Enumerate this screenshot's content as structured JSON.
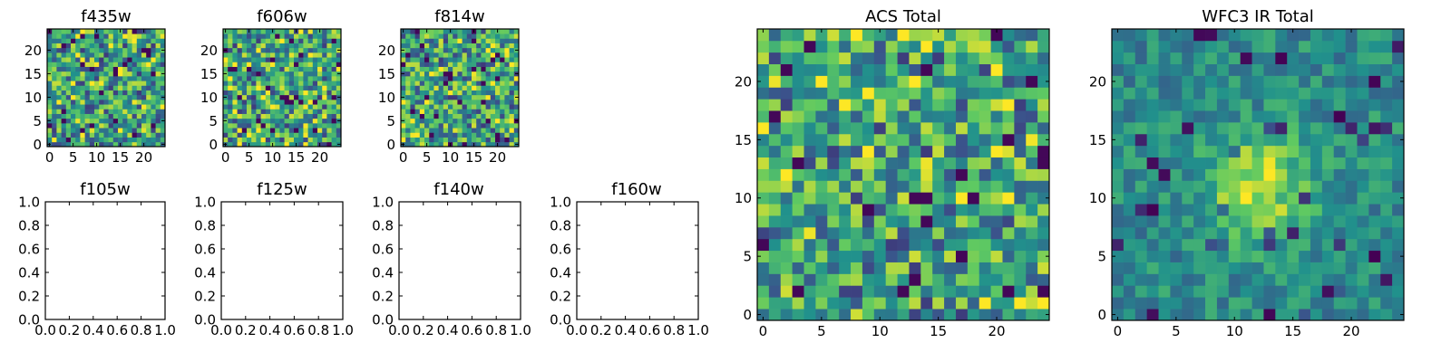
{
  "chart_data": [
    {
      "type": "heatmap",
      "title": "f435w",
      "xlim": [
        -0.5,
        24.5
      ],
      "ylim": [
        -0.5,
        24.5
      ],
      "xticks": [
        0,
        5,
        10,
        15,
        20
      ],
      "yticks": [
        0,
        5,
        10,
        15,
        20
      ],
      "xtick_labels": [
        "0",
        "5",
        "10",
        "15",
        "20"
      ],
      "ytick_labels": [
        "0",
        "5",
        "10",
        "15",
        "20"
      ],
      "grid_size": [
        25,
        25
      ],
      "colormap": "viridis",
      "pattern": "noise",
      "seed": 11
    },
    {
      "type": "heatmap",
      "title": "f606w",
      "xlim": [
        -0.5,
        24.5
      ],
      "ylim": [
        -0.5,
        24.5
      ],
      "xticks": [
        0,
        5,
        10,
        15,
        20
      ],
      "yticks": [
        0,
        5,
        10,
        15,
        20
      ],
      "xtick_labels": [
        "0",
        "5",
        "10",
        "15",
        "20"
      ],
      "ytick_labels": [
        "0",
        "5",
        "10",
        "15",
        "20"
      ],
      "grid_size": [
        25,
        25
      ],
      "colormap": "viridis",
      "pattern": "noise",
      "seed": 23
    },
    {
      "type": "heatmap",
      "title": "f814w",
      "xlim": [
        -0.5,
        24.5
      ],
      "ylim": [
        -0.5,
        24.5
      ],
      "xticks": [
        0,
        5,
        10,
        15,
        20
      ],
      "yticks": [
        0,
        5,
        10,
        15,
        20
      ],
      "xtick_labels": [
        "0",
        "5",
        "10",
        "15",
        "20"
      ],
      "ytick_labels": [
        "0",
        "5",
        "10",
        "15",
        "20"
      ],
      "grid_size": [
        25,
        25
      ],
      "colormap": "viridis",
      "pattern": "noise",
      "seed": 37
    },
    {
      "type": "empty",
      "title": "f105w",
      "xlim": [
        0,
        1
      ],
      "ylim": [
        0,
        1
      ],
      "xtick_labels": [
        "0.0",
        "0.2",
        "0.4",
        "0.6",
        "0.8",
        "1.0"
      ],
      "ytick_labels": [
        "0.0",
        "0.2",
        "0.4",
        "0.6",
        "0.8",
        "1.0"
      ]
    },
    {
      "type": "empty",
      "title": "f125w",
      "xlim": [
        0,
        1
      ],
      "ylim": [
        0,
        1
      ],
      "xtick_labels": [
        "0.0",
        "0.2",
        "0.4",
        "0.6",
        "0.8",
        "1.0"
      ],
      "ytick_labels": [
        "0.0",
        "0.2",
        "0.4",
        "0.6",
        "0.8",
        "1.0"
      ]
    },
    {
      "type": "empty",
      "title": "f140w",
      "xlim": [
        0,
        1
      ],
      "ylim": [
        0,
        1
      ],
      "xtick_labels": [
        "0.0",
        "0.2",
        "0.4",
        "0.6",
        "0.8",
        "1.0"
      ],
      "ytick_labels": [
        "0.0",
        "0.2",
        "0.4",
        "0.6",
        "0.8",
        "1.0"
      ]
    },
    {
      "type": "empty",
      "title": "f160w",
      "xlim": [
        0,
        1
      ],
      "ylim": [
        0,
        1
      ],
      "xtick_labels": [
        "0.0",
        "0.2",
        "0.4",
        "0.6",
        "0.8",
        "1.0"
      ],
      "ytick_labels": [
        "0.0",
        "0.2",
        "0.4",
        "0.6",
        "0.8",
        "1.0"
      ]
    },
    {
      "type": "heatmap",
      "title": "ACS Total",
      "xlim": [
        -0.5,
        24.5
      ],
      "ylim": [
        -0.5,
        24.5
      ],
      "xticks": [
        0,
        5,
        10,
        15,
        20
      ],
      "yticks": [
        0,
        5,
        10,
        15,
        20
      ],
      "xtick_labels": [
        "0",
        "5",
        "10",
        "15",
        "20"
      ],
      "ytick_labels": [
        "0",
        "5",
        "10",
        "15",
        "20"
      ],
      "grid_size": [
        25,
        25
      ],
      "colormap": "viridis",
      "pattern": "noise",
      "seed": 51
    },
    {
      "type": "heatmap",
      "title": "WFC3 IR Total",
      "xlim": [
        -0.5,
        24.5
      ],
      "ylim": [
        -0.5,
        24.5
      ],
      "xticks": [
        0,
        5,
        10,
        15,
        20
      ],
      "yticks": [
        0,
        5,
        10,
        15,
        20
      ],
      "xtick_labels": [
        "0",
        "5",
        "10",
        "15",
        "20"
      ],
      "ytick_labels": [
        "0",
        "5",
        "10",
        "15",
        "20"
      ],
      "grid_size": [
        25,
        25
      ],
      "colormap": "viridis",
      "pattern": "central source",
      "seed": 67,
      "source_center": [
        12,
        11
      ]
    }
  ],
  "colors": {
    "viridis": [
      "#440154",
      "#3b528b",
      "#21918c",
      "#5ec962",
      "#fde725"
    ]
  }
}
